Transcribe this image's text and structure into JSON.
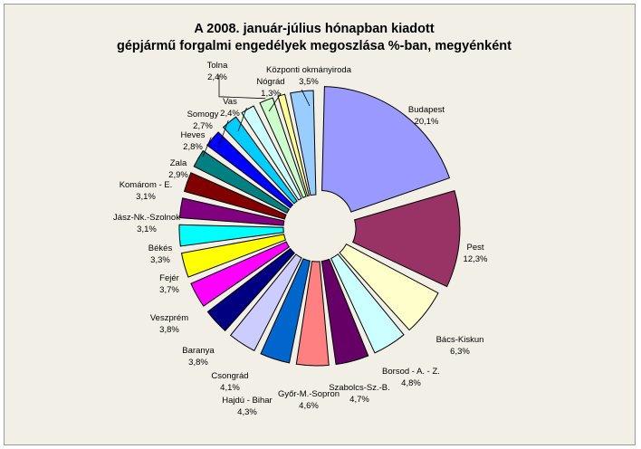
{
  "chart_data": {
    "type": "pie",
    "title_line1": "A  2008. január-július hónapban kiadott",
    "title_line2": "gépjármű forgalmi engedélyek megoszlása %-ban, megyénként",
    "slices": [
      {
        "name": "Budapest",
        "value": 20.1,
        "label": "20,1%",
        "color": "#9999ff"
      },
      {
        "name": "Pest",
        "value": 12.3,
        "label": "12,3%",
        "color": "#993366"
      },
      {
        "name": "Bács-Kiskun",
        "value": 6.3,
        "label": "6,3%",
        "color": "#ffffcc"
      },
      {
        "name": "Borsod - A. - Z.",
        "value": 4.8,
        "label": "4,8%",
        "color": "#ccffff"
      },
      {
        "name": "Szabolcs-Sz.-B.",
        "value": 4.7,
        "label": "4,7%",
        "color": "#660066"
      },
      {
        "name": "Győr-M.-Sopron",
        "value": 4.6,
        "label": "4,6%",
        "color": "#ff8080"
      },
      {
        "name": "Hajdú - Bihar",
        "value": 4.3,
        "label": "4,3%",
        "color": "#0066cc"
      },
      {
        "name": "Csongrád",
        "value": 4.1,
        "label": "4,1%",
        "color": "#ccccff"
      },
      {
        "name": "Baranya",
        "value": 3.8,
        "label": "3,8%",
        "color": "#000080"
      },
      {
        "name": "Veszprém",
        "value": 3.8,
        "label": "3,8%",
        "color": "#ff00ff"
      },
      {
        "name": "Fejér",
        "value": 3.7,
        "label": "3,7%",
        "color": "#ffff00"
      },
      {
        "name": "Békés",
        "value": 3.3,
        "label": "3,3%",
        "color": "#00ffff"
      },
      {
        "name": "Jász-Nk.-Szolnok",
        "value": 3.1,
        "label": "3,1%",
        "color": "#800080"
      },
      {
        "name": "Komárom - E.",
        "value": 3.1,
        "label": "3,1%",
        "color": "#800000"
      },
      {
        "name": "Zala",
        "value": 2.9,
        "label": "2,9%",
        "color": "#008080"
      },
      {
        "name": "Heves",
        "value": 2.8,
        "label": "2,8%",
        "color": "#0000ff"
      },
      {
        "name": "Somogy",
        "value": 2.7,
        "label": "2,7%",
        "color": "#00ccff"
      },
      {
        "name": "Vas",
        "value": 2.4,
        "label": "2,4%",
        "color": "#ccffff"
      },
      {
        "name": "Tolna",
        "value": 2.4,
        "label": "2,4%",
        "color": "#ccffcc"
      },
      {
        "name": "Nógrád",
        "value": 1.3,
        "label": "1,3%",
        "color": "#ffff99"
      },
      {
        "name": "Központi okmányiroda",
        "value": 3.5,
        "label": "3,5%",
        "color": "#99ccff"
      }
    ]
  }
}
